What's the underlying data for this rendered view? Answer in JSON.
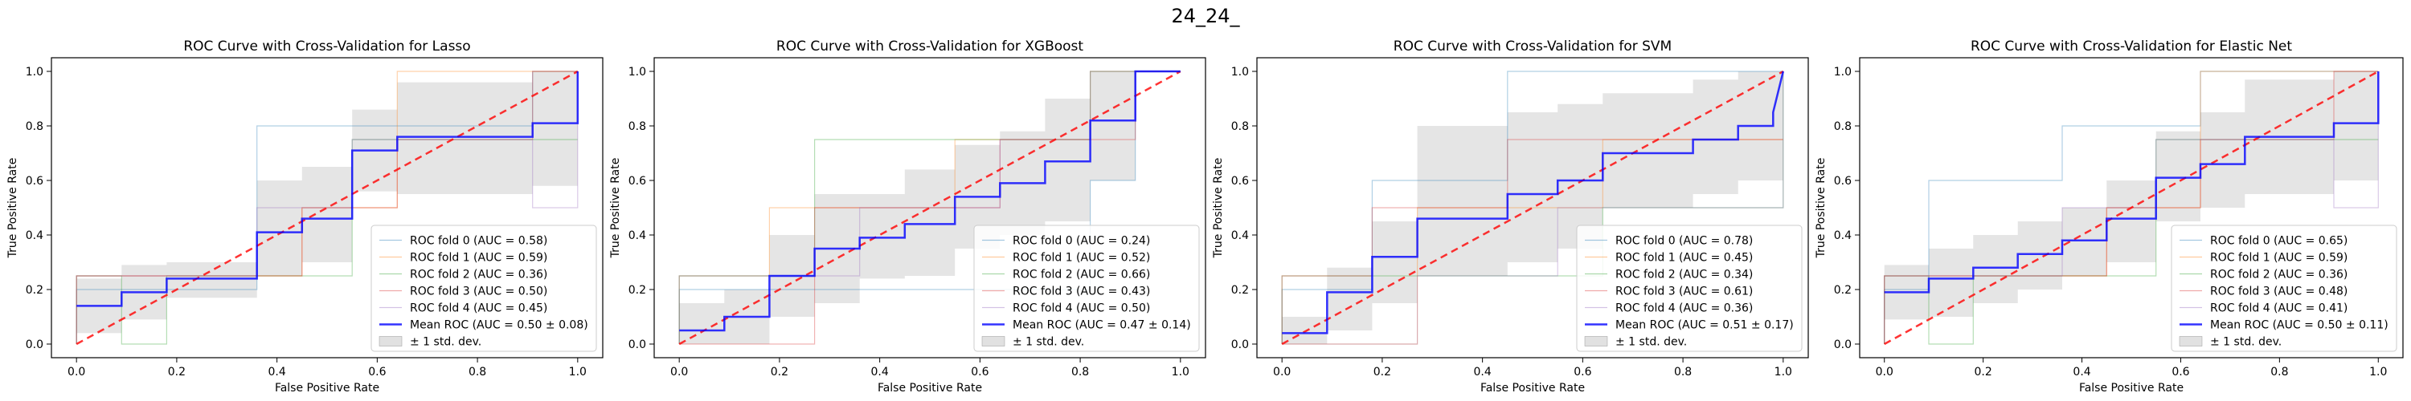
{
  "figure": {
    "suptitle": "24_24_"
  },
  "chart_data": [
    {
      "type": "line",
      "title": "ROC Curve with Cross-Validation for Lasso",
      "xlabel": "False Positive Rate",
      "ylabel": "True Positive Rate",
      "xlim": [
        -0.05,
        1.05
      ],
      "ylim": [
        -0.05,
        1.05
      ],
      "xticks": [
        "0.0",
        "0.2",
        "0.4",
        "0.6",
        "0.8",
        "1.0"
      ],
      "yticks": [
        "0.0",
        "0.2",
        "0.4",
        "0.6",
        "0.8",
        "1.0"
      ],
      "legend_position": "lower-right",
      "chance_label": "",
      "folds": [
        {
          "name": "ROC fold 0 (AUC = 0.58)",
          "color": "#1f77b4",
          "x": [
            0,
            0,
            0.36,
            0.36,
            0.55,
            0.55,
            0.91,
            0.91,
            1
          ],
          "y": [
            0,
            0.2,
            0.2,
            0.8,
            0.8,
            0.8,
            0.8,
            1,
            1
          ]
        },
        {
          "name": "ROC fold 1 (AUC = 0.59)",
          "color": "#ff7f0e",
          "x": [
            0,
            0,
            0.45,
            0.45,
            0.64,
            0.64,
            1
          ],
          "y": [
            0,
            0.25,
            0.25,
            0.5,
            0.5,
            1,
            1
          ]
        },
        {
          "name": "ROC fold 2 (AUC = 0.36)",
          "color": "#2ca02c",
          "x": [
            0,
            0,
            0.09,
            0.09,
            0.18,
            0.18,
            0.55,
            0.55,
            1
          ],
          "y": [
            0,
            0.25,
            0.25,
            0,
            0,
            0.25,
            0.25,
            0.75,
            0.75
          ]
        },
        {
          "name": "ROC fold 3 (AUC = 0.50)",
          "color": "#d62728",
          "x": [
            0,
            0,
            0.45,
            0.45,
            0.64,
            0.64,
            0.91,
            0.91,
            1
          ],
          "y": [
            0,
            0.25,
            0.25,
            0.5,
            0.5,
            0.75,
            0.75,
            1,
            1
          ]
        },
        {
          "name": "ROC fold 4 (AUC = 0.45)",
          "color": "#9467bd",
          "x": [
            0,
            0,
            0.36,
            0.36,
            0.55,
            0.55,
            0.91,
            0.91,
            1,
            1
          ],
          "y": [
            0,
            0.25,
            0.25,
            0.5,
            0.5,
            0.75,
            0.75,
            0.5,
            0.5,
            1
          ]
        }
      ],
      "mean": {
        "name": "Mean ROC (AUC = 0.50 ± 0.08)",
        "color": "#0000ff",
        "x": [
          0,
          0.09,
          0.09,
          0.18,
          0.18,
          0.36,
          0.36,
          0.45,
          0.45,
          0.55,
          0.55,
          0.64,
          0.64,
          0.91,
          0.91,
          1,
          1
        ],
        "y": [
          0.14,
          0.14,
          0.19,
          0.19,
          0.24,
          0.24,
          0.41,
          0.41,
          0.46,
          0.46,
          0.71,
          0.71,
          0.76,
          0.76,
          0.81,
          0.81,
          1.0
        ]
      },
      "std_band": {
        "name": "± 1 std. dev.",
        "color": "#bdbdbd",
        "x": [
          0,
          0.09,
          0.09,
          0.18,
          0.18,
          0.36,
          0.36,
          0.45,
          0.45,
          0.55,
          0.55,
          0.64,
          0.64,
          0.91,
          0.91,
          1
        ],
        "lower": [
          0.04,
          0.04,
          0.09,
          0.09,
          0.17,
          0.17,
          0.25,
          0.25,
          0.3,
          0.3,
          0.56,
          0.56,
          0.55,
          0.55,
          0.58,
          0.58
        ],
        "upper": [
          0.24,
          0.24,
          0.29,
          0.29,
          0.3,
          0.3,
          0.6,
          0.6,
          0.65,
          0.65,
          0.86,
          0.86,
          0.96,
          0.96,
          1.0,
          1.0
        ]
      }
    },
    {
      "type": "line",
      "title": "ROC Curve with Cross-Validation for XGBoost",
      "xlabel": "False Positive Rate",
      "ylabel": "True Positive Rate",
      "xlim": [
        -0.05,
        1.05
      ],
      "ylim": [
        -0.05,
        1.05
      ],
      "xticks": [
        "0.0",
        "0.2",
        "0.4",
        "0.6",
        "0.8",
        "1.0"
      ],
      "yticks": [
        "0.0",
        "0.2",
        "0.4",
        "0.6",
        "0.8",
        "1.0"
      ],
      "legend_position": "lower-right",
      "chance_label": "",
      "folds": [
        {
          "name": "ROC fold 0 (AUC = 0.24)",
          "color": "#1f77b4",
          "x": [
            0,
            0,
            0.82,
            0.82,
            0.91,
            0.91,
            1
          ],
          "y": [
            0,
            0.2,
            0.2,
            0.6,
            0.6,
            1,
            1
          ]
        },
        {
          "name": "ROC fold 1 (AUC = 0.52)",
          "color": "#ff7f0e",
          "x": [
            0,
            0,
            0.18,
            0.18,
            0.55,
            0.55,
            0.82,
            0.82,
            1
          ],
          "y": [
            0,
            0.25,
            0.25,
            0.5,
            0.5,
            0.75,
            0.75,
            1,
            1
          ]
        },
        {
          "name": "ROC fold 2 (AUC = 0.66)",
          "color": "#2ca02c",
          "x": [
            0,
            0,
            0.27,
            0.27,
            0.55,
            0.55,
            0.82,
            0.82,
            1
          ],
          "y": [
            0,
            0.25,
            0.25,
            0.75,
            0.75,
            0.75,
            0.75,
            1,
            1
          ]
        },
        {
          "name": "ROC fold 3 (AUC = 0.43)",
          "color": "#d62728",
          "x": [
            0,
            0,
            0.27,
            0.27,
            0.64,
            0.64,
            0.91,
            0.91,
            1
          ],
          "y": [
            0,
            0,
            0,
            0.5,
            0.5,
            0.75,
            0.75,
            1,
            1
          ]
        },
        {
          "name": "ROC fold 4 (AUC = 0.50)",
          "color": "#9467bd",
          "x": [
            0,
            0,
            0.36,
            0.36,
            0.64,
            0.64,
            0.82,
            0.82,
            1
          ],
          "y": [
            0,
            0.25,
            0.25,
            0.5,
            0.5,
            0.75,
            0.75,
            1,
            1
          ]
        }
      ],
      "mean": {
        "name": "Mean ROC (AUC = 0.47 ± 0.14)",
        "color": "#0000ff",
        "x": [
          0,
          0.09,
          0.09,
          0.18,
          0.18,
          0.27,
          0.27,
          0.36,
          0.36,
          0.45,
          0.45,
          0.55,
          0.55,
          0.64,
          0.64,
          0.73,
          0.73,
          0.82,
          0.82,
          0.91,
          0.91,
          1
        ],
        "y": [
          0.05,
          0.05,
          0.1,
          0.1,
          0.25,
          0.25,
          0.35,
          0.35,
          0.39,
          0.39,
          0.44,
          0.44,
          0.54,
          0.54,
          0.59,
          0.59,
          0.67,
          0.67,
          0.82,
          0.82,
          1.0,
          1.0
        ]
      },
      "std_band": {
        "name": "± 1 std. dev.",
        "color": "#bdbdbd",
        "x": [
          0,
          0.09,
          0.09,
          0.18,
          0.18,
          0.27,
          0.27,
          0.36,
          0.36,
          0.45,
          0.45,
          0.55,
          0.55,
          0.64,
          0.64,
          0.73,
          0.73,
          0.82,
          0.82,
          0.91,
          0.91,
          1
        ],
        "lower": [
          0.0,
          0.0,
          0.0,
          0.0,
          0.1,
          0.1,
          0.15,
          0.15,
          0.24,
          0.24,
          0.25,
          0.25,
          0.35,
          0.35,
          0.4,
          0.4,
          0.45,
          0.45,
          0.6,
          0.6,
          1.0,
          1.0
        ],
        "upper": [
          0.15,
          0.15,
          0.2,
          0.2,
          0.4,
          0.4,
          0.55,
          0.55,
          0.55,
          0.55,
          0.64,
          0.64,
          0.73,
          0.73,
          0.78,
          0.78,
          0.9,
          0.9,
          1.0,
          1.0,
          1.0,
          1.0
        ]
      }
    },
    {
      "type": "line",
      "title": "ROC Curve with Cross-Validation for SVM",
      "xlabel": "False Positive Rate",
      "ylabel": "True Positive Rate",
      "xlim": [
        -0.05,
        1.05
      ],
      "ylim": [
        -0.05,
        1.05
      ],
      "xticks": [
        "0.0",
        "0.2",
        "0.4",
        "0.6",
        "0.8",
        "1.0"
      ],
      "yticks": [
        "0.0",
        "0.2",
        "0.4",
        "0.6",
        "0.8",
        "1.0"
      ],
      "legend_position": "lower-right",
      "chance_label": "",
      "folds": [
        {
          "name": "ROC fold 0 (AUC = 0.78)",
          "color": "#1f77b4",
          "x": [
            0,
            0,
            0.18,
            0.18,
            0.45,
            0.45,
            1
          ],
          "y": [
            0,
            0.2,
            0.2,
            0.6,
            0.6,
            1,
            1
          ]
        },
        {
          "name": "ROC fold 1 (AUC = 0.45)",
          "color": "#ff7f0e",
          "x": [
            0,
            0,
            0.27,
            0.27,
            0.64,
            0.64,
            1
          ],
          "y": [
            0,
            0,
            0,
            0.5,
            0.5,
            0.75,
            0.75
          ]
        },
        {
          "name": "ROC fold 2 (AUC = 0.34)",
          "color": "#2ca02c",
          "x": [
            0,
            0,
            0.36,
            0.36,
            0.64,
            0.64,
            1,
            1
          ],
          "y": [
            0,
            0.25,
            0.25,
            0.25,
            0.25,
            0.5,
            0.5,
            1
          ]
        },
        {
          "name": "ROC fold 3 (AUC = 0.61)",
          "color": "#d62728",
          "x": [
            0,
            0,
            0.18,
            0.18,
            0.45,
            0.45,
            0.82,
            0.82,
            1
          ],
          "y": [
            0,
            0.25,
            0.25,
            0.5,
            0.5,
            0.75,
            0.75,
            0.75,
            0.75
          ]
        },
        {
          "name": "ROC fold 4 (AUC = 0.36)",
          "color": "#9467bd",
          "x": [
            0,
            0,
            0.27,
            0.27,
            0.55,
            0.55,
            1,
            1
          ],
          "y": [
            0,
            0,
            0,
            0.25,
            0.25,
            0.5,
            0.5,
            1
          ]
        }
      ],
      "mean": {
        "name": "Mean ROC (AUC = 0.51 ± 0.17)",
        "color": "#0000ff",
        "x": [
          0,
          0.09,
          0.09,
          0.18,
          0.18,
          0.27,
          0.27,
          0.45,
          0.45,
          0.55,
          0.55,
          0.64,
          0.64,
          0.82,
          0.82,
          0.91,
          0.91,
          0.98,
          0.98,
          1
        ],
        "y": [
          0.04,
          0.04,
          0.19,
          0.19,
          0.32,
          0.32,
          0.46,
          0.46,
          0.55,
          0.55,
          0.6,
          0.6,
          0.7,
          0.7,
          0.75,
          0.75,
          0.8,
          0.8,
          0.85,
          1.0
        ]
      },
      "std_band": {
        "name": "± 1 std. dev.",
        "color": "#bdbdbd",
        "x": [
          0,
          0.09,
          0.09,
          0.18,
          0.18,
          0.27,
          0.27,
          0.45,
          0.45,
          0.55,
          0.55,
          0.64,
          0.64,
          0.82,
          0.82,
          0.91,
          0.91,
          1
        ],
        "lower": [
          0.0,
          0.0,
          0.05,
          0.05,
          0.15,
          0.15,
          0.25,
          0.25,
          0.3,
          0.3,
          0.35,
          0.35,
          0.5,
          0.5,
          0.55,
          0.55,
          0.6,
          0.6
        ],
        "upper": [
          0.1,
          0.1,
          0.28,
          0.28,
          0.45,
          0.45,
          0.8,
          0.8,
          0.85,
          0.85,
          0.88,
          0.88,
          0.92,
          0.92,
          0.97,
          0.97,
          1.0,
          1.0
        ]
      }
    },
    {
      "type": "line",
      "title": "ROC Curve with Cross-Validation for Elastic Net",
      "xlabel": "False Positive Rate",
      "ylabel": "True Positive Rate",
      "xlim": [
        -0.05,
        1.05
      ],
      "ylim": [
        -0.05,
        1.05
      ],
      "xticks": [
        "0.0",
        "0.2",
        "0.4",
        "0.6",
        "0.8",
        "1.0"
      ],
      "yticks": [
        "0.0",
        "0.2",
        "0.4",
        "0.6",
        "0.8",
        "1.0"
      ],
      "legend_position": "lower-right",
      "chance_label": "",
      "folds": [
        {
          "name": "ROC fold 0 (AUC = 0.65)",
          "color": "#1f77b4",
          "x": [
            0,
            0,
            0.09,
            0.09,
            0.36,
            0.36,
            0.64,
            0.64,
            1
          ],
          "y": [
            0,
            0.2,
            0.2,
            0.6,
            0.6,
            0.8,
            0.8,
            1,
            1
          ]
        },
        {
          "name": "ROC fold 1 (AUC = 0.59)",
          "color": "#ff7f0e",
          "x": [
            0,
            0,
            0.45,
            0.45,
            0.64,
            0.64,
            1
          ],
          "y": [
            0,
            0.25,
            0.25,
            0.5,
            0.5,
            1,
            1
          ]
        },
        {
          "name": "ROC fold 2 (AUC = 0.36)",
          "color": "#2ca02c",
          "x": [
            0,
            0,
            0.09,
            0.09,
            0.18,
            0.18,
            0.55,
            0.55,
            1
          ],
          "y": [
            0,
            0.25,
            0.25,
            0,
            0,
            0.25,
            0.25,
            0.75,
            0.75
          ]
        },
        {
          "name": "ROC fold 3 (AUC = 0.48)",
          "color": "#d62728",
          "x": [
            0,
            0,
            0.45,
            0.45,
            0.64,
            0.64,
            0.91,
            0.91,
            1
          ],
          "y": [
            0,
            0.25,
            0.25,
            0.5,
            0.5,
            0.75,
            0.75,
            1,
            1
          ]
        },
        {
          "name": "ROC fold 4 (AUC = 0.41)",
          "color": "#9467bd",
          "x": [
            0,
            0,
            0.36,
            0.36,
            0.55,
            0.55,
            0.91,
            0.91,
            1,
            1
          ],
          "y": [
            0,
            0.25,
            0.25,
            0.5,
            0.5,
            0.75,
            0.75,
            0.5,
            0.5,
            1
          ]
        }
      ],
      "mean": {
        "name": "Mean ROC (AUC = 0.50 ± 0.11)",
        "color": "#0000ff",
        "x": [
          0,
          0.09,
          0.09,
          0.18,
          0.18,
          0.27,
          0.27,
          0.36,
          0.36,
          0.45,
          0.45,
          0.55,
          0.55,
          0.64,
          0.64,
          0.73,
          0.73,
          0.91,
          0.91,
          1,
          1
        ],
        "y": [
          0.19,
          0.19,
          0.24,
          0.24,
          0.28,
          0.28,
          0.33,
          0.33,
          0.38,
          0.38,
          0.46,
          0.46,
          0.61,
          0.61,
          0.66,
          0.66,
          0.76,
          0.76,
          0.81,
          0.81,
          1.0
        ]
      },
      "std_band": {
        "name": "± 1 std. dev.",
        "color": "#bdbdbd",
        "x": [
          0,
          0.09,
          0.09,
          0.18,
          0.18,
          0.27,
          0.27,
          0.36,
          0.36,
          0.45,
          0.45,
          0.55,
          0.55,
          0.64,
          0.64,
          0.73,
          0.73,
          0.91,
          0.91,
          1
        ],
        "lower": [
          0.09,
          0.09,
          0.1,
          0.1,
          0.15,
          0.15,
          0.2,
          0.2,
          0.25,
          0.25,
          0.3,
          0.3,
          0.45,
          0.45,
          0.5,
          0.5,
          0.55,
          0.55,
          0.6,
          0.6
        ],
        "upper": [
          0.29,
          0.29,
          0.35,
          0.35,
          0.4,
          0.4,
          0.45,
          0.45,
          0.5,
          0.5,
          0.6,
          0.6,
          0.78,
          0.78,
          0.85,
          0.85,
          0.97,
          0.97,
          1.0,
          1.0
        ]
      }
    }
  ]
}
